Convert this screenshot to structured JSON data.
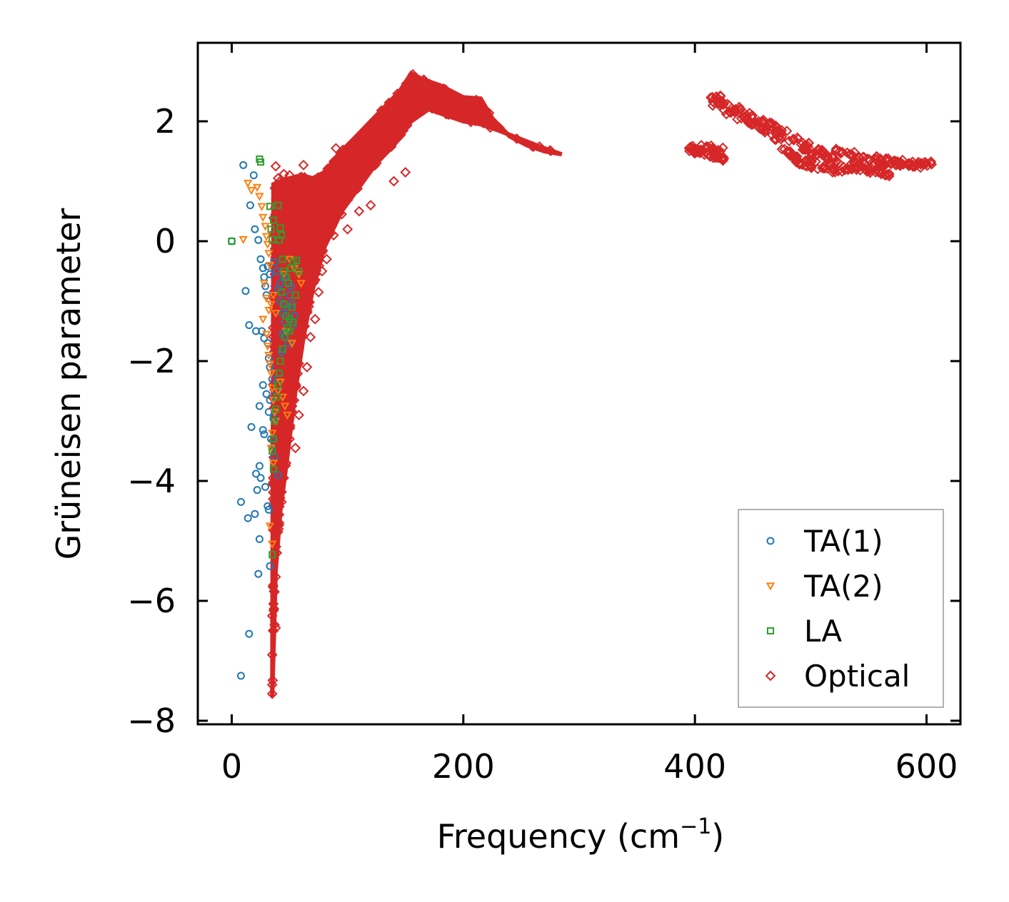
{
  "chart_data": {
    "type": "scatter",
    "title": "",
    "xlabel": "Frequency (cm",
    "xlabel_sup": "−1",
    "xlabel_close": ")",
    "ylabel": "Grüneisen parameter",
    "xlim": [
      -30,
      630
    ],
    "ylim": [
      -8.1,
      3.3
    ],
    "xticks": [
      0,
      200,
      400,
      600
    ],
    "yticks": [
      2,
      0,
      -2,
      -4,
      -6,
      -8
    ],
    "xtick_labels": [
      "0",
      "200",
      "400",
      "600"
    ],
    "ytick_labels": [
      "2",
      "0",
      "−2",
      "−4",
      "−6",
      "−8"
    ],
    "legend_position": "lower-right",
    "series": [
      {
        "name": "TA(1)",
        "marker": "circle",
        "color": "#1f77b4",
        "points": [
          [
            0,
            0
          ],
          [
            10,
            1.27
          ],
          [
            19,
            1.1
          ],
          [
            16,
            0.6
          ],
          [
            20,
            0.2
          ],
          [
            23,
            0.02
          ],
          [
            25,
            -0.3
          ],
          [
            27,
            -0.45
          ],
          [
            28,
            -0.6
          ],
          [
            29,
            -0.75
          ],
          [
            30,
            -0.9
          ],
          [
            31,
            -0.42
          ],
          [
            33,
            -0.55
          ],
          [
            12,
            -0.83
          ],
          [
            15,
            -1.4
          ],
          [
            21,
            -1.5
          ],
          [
            26,
            -1.5
          ],
          [
            28,
            -1.62
          ],
          [
            31,
            -1.7
          ],
          [
            32,
            -1.95
          ],
          [
            33,
            -2.1
          ],
          [
            35,
            -2.3
          ],
          [
            27,
            -2.4
          ],
          [
            30,
            -2.55
          ],
          [
            33,
            -2.65
          ],
          [
            24,
            -2.75
          ],
          [
            32,
            -2.85
          ],
          [
            17,
            -3.1
          ],
          [
            27,
            -3.15
          ],
          [
            28,
            -3.22
          ],
          [
            35,
            -3.45
          ],
          [
            37,
            -3.6
          ],
          [
            40,
            -3.9
          ],
          [
            24,
            -3.75
          ],
          [
            21,
            -3.88
          ],
          [
            25,
            -3.95
          ],
          [
            22,
            -4.15
          ],
          [
            29,
            -4.1
          ],
          [
            31,
            -4.42
          ],
          [
            32,
            -4.48
          ],
          [
            20,
            -4.55
          ],
          [
            14,
            -4.62
          ],
          [
            8,
            -4.35
          ],
          [
            24,
            -4.97
          ],
          [
            33,
            -5.42
          ],
          [
            23,
            -5.55
          ],
          [
            15,
            -6.55
          ],
          [
            8,
            -7.25
          ],
          [
            40,
            -0.8
          ],
          [
            42,
            -1.0
          ],
          [
            44,
            -1.2
          ],
          [
            46,
            -1.35
          ],
          [
            48,
            -1.1
          ],
          [
            50,
            -0.9
          ],
          [
            52,
            -1.05
          ],
          [
            54,
            -1.25
          ],
          [
            45,
            -0.6
          ],
          [
            47,
            -1.5
          ],
          [
            49,
            -1.7
          ],
          [
            43,
            -1.85
          ],
          [
            41,
            -2.2
          ],
          [
            38,
            -2.5
          ],
          [
            36,
            -2.95
          ],
          [
            34,
            -3.3
          ],
          [
            39,
            -0.5
          ],
          [
            37,
            -0.35
          ],
          [
            42,
            -0.7
          ],
          [
            51,
            -0.75
          ],
          [
            53,
            -1.4
          ],
          [
            44,
            -1.55
          ]
        ]
      },
      {
        "name": "TA(2)",
        "marker": "triangle-down",
        "color": "#ff7f0e",
        "points": [
          [
            10,
            0.03
          ],
          [
            14,
            0.97
          ],
          [
            17,
            0.85
          ],
          [
            22,
            0.9
          ],
          [
            24,
            0.75
          ],
          [
            26,
            0.58
          ],
          [
            27,
            0.4
          ],
          [
            29,
            0.25
          ],
          [
            30,
            0.08
          ],
          [
            31,
            -0.05
          ],
          [
            32,
            -0.2
          ],
          [
            33,
            -0.4
          ],
          [
            28,
            -0.7
          ],
          [
            30,
            -0.95
          ],
          [
            32,
            -1.15
          ],
          [
            34,
            -1.05
          ],
          [
            36,
            -0.9
          ],
          [
            38,
            -1.2
          ],
          [
            27,
            -1.3
          ],
          [
            30,
            -1.55
          ],
          [
            31,
            -1.75
          ],
          [
            32,
            -1.9
          ],
          [
            33,
            -2.05
          ],
          [
            34,
            -2.2
          ],
          [
            35,
            -2.45
          ],
          [
            36,
            -2.65
          ],
          [
            37,
            -2.85
          ],
          [
            38,
            -3.0
          ],
          [
            35,
            -3.2
          ],
          [
            34,
            -3.45
          ],
          [
            36,
            -3.7
          ],
          [
            33,
            -4.75
          ],
          [
            35,
            -5.05
          ],
          [
            40,
            -2.5
          ],
          [
            42,
            -2.35
          ],
          [
            44,
            -2.6
          ],
          [
            46,
            -2.75
          ],
          [
            48,
            -2.9
          ],
          [
            50,
            -0.3
          ],
          [
            54,
            -0.45
          ],
          [
            58,
            -0.55
          ],
          [
            60,
            -0.7
          ],
          [
            45,
            -0.55
          ],
          [
            47,
            -1.5
          ],
          [
            52,
            -1.7
          ]
        ]
      },
      {
        "name": "LA",
        "marker": "square",
        "color": "#2ca02c",
        "points": [
          [
            0,
            0
          ],
          [
            24,
            1.37
          ],
          [
            25,
            1.32
          ],
          [
            33,
            0.58
          ],
          [
            36,
            0.35
          ],
          [
            34,
            0.2
          ],
          [
            35,
            0.03
          ],
          [
            40,
            0.6
          ],
          [
            42,
            0.22
          ],
          [
            43,
            0.1
          ],
          [
            41,
            0.02
          ],
          [
            44,
            -0.3
          ],
          [
            45,
            -0.5
          ],
          [
            47,
            -0.6
          ],
          [
            49,
            -0.7
          ],
          [
            51,
            -0.45
          ],
          [
            53,
            -0.35
          ],
          [
            56,
            -0.32
          ],
          [
            58,
            -0.5
          ],
          [
            55,
            -0.9
          ],
          [
            52,
            -1.1
          ],
          [
            50,
            -1.3
          ],
          [
            48,
            -1.45
          ],
          [
            46,
            -1.6
          ],
          [
            44,
            -1.8
          ],
          [
            42,
            -2.0
          ],
          [
            41,
            -2.2
          ],
          [
            40,
            -2.4
          ],
          [
            39,
            -2.6
          ],
          [
            38,
            -2.8
          ],
          [
            37,
            -3.0
          ],
          [
            36,
            -3.3
          ],
          [
            35,
            -3.5
          ],
          [
            36,
            -3.8
          ],
          [
            35,
            -5.23
          ],
          [
            43,
            -0.85
          ],
          [
            45,
            -1.05
          ],
          [
            47,
            -1.25
          ],
          [
            50,
            -1.5
          ],
          [
            53,
            -1.35
          ]
        ]
      },
      {
        "name": "Optical",
        "marker": "diamond",
        "color": "#d62728",
        "band": [
          [
            35,
            -7.6
          ],
          [
            38,
            -5.5
          ],
          [
            42,
            -4.5
          ],
          [
            48,
            -3.6
          ],
          [
            55,
            -2.5
          ],
          [
            62,
            -1.6
          ],
          [
            70,
            -0.8
          ],
          [
            80,
            -0.1
          ],
          [
            95,
            0.5
          ],
          [
            110,
            0.9
          ],
          [
            125,
            1.3
          ],
          [
            140,
            1.6
          ],
          [
            155,
            2.0
          ],
          [
            170,
            2.2
          ],
          [
            185,
            2.1
          ],
          [
            200,
            2.0
          ],
          [
            215,
            1.95
          ],
          [
            230,
            1.85
          ],
          [
            250,
            1.7
          ],
          [
            270,
            1.55
          ],
          [
            285,
            1.45
          ],
          [
            270,
            1.5
          ],
          [
            255,
            1.6
          ],
          [
            240,
            1.75
          ],
          [
            225,
            2.05
          ],
          [
            215,
            2.38
          ],
          [
            200,
            2.4
          ],
          [
            190,
            2.5
          ],
          [
            180,
            2.6
          ],
          [
            165,
            2.7
          ],
          [
            155,
            2.8
          ],
          [
            145,
            2.5
          ],
          [
            135,
            2.3
          ],
          [
            120,
            2.0
          ],
          [
            105,
            1.7
          ],
          [
            92,
            1.45
          ],
          [
            80,
            1.15
          ],
          [
            70,
            1.05
          ],
          [
            60,
            1.1
          ],
          [
            50,
            1.05
          ],
          [
            42,
            1.0
          ],
          [
            36,
            0.95
          ]
        ],
        "clusters": [
          [
            [
              395,
              1.55
            ],
            [
              405,
              1.5
            ],
            [
              412,
              1.45
            ],
            [
              418,
              1.4
            ],
            [
              425,
              1.38
            ],
            [
              420,
              1.52
            ],
            [
              410,
              1.58
            ],
            [
              400,
              1.5
            ]
          ],
          [
            [
              418,
              2.4
            ],
            [
              425,
              2.3
            ],
            [
              435,
              2.2
            ],
            [
              445,
              2.1
            ],
            [
              455,
              2.0
            ],
            [
              465,
              1.95
            ],
            [
              475,
              1.85
            ],
            [
              485,
              1.7
            ],
            [
              495,
              1.55
            ],
            [
              505,
              1.45
            ],
            [
              515,
              1.4
            ],
            [
              525,
              1.5
            ],
            [
              535,
              1.45
            ],
            [
              545,
              1.4
            ],
            [
              555,
              1.38
            ],
            [
              565,
              1.35
            ],
            [
              575,
              1.33
            ],
            [
              585,
              1.3
            ],
            [
              595,
              1.28
            ],
            [
              600,
              1.3
            ],
            [
              590,
              1.25
            ],
            [
              580,
              1.28
            ],
            [
              570,
              1.3
            ],
            [
              560,
              1.25
            ],
            [
              550,
              1.2
            ],
            [
              540,
              1.22
            ],
            [
              530,
              1.2
            ],
            [
              520,
              1.18
            ],
            [
              510,
              1.22
            ],
            [
              500,
              1.25
            ],
            [
              490,
              1.3
            ],
            [
              485,
              1.4
            ],
            [
              480,
              1.5
            ],
            [
              470,
              1.7
            ],
            [
              460,
              1.85
            ],
            [
              450,
              1.95
            ],
            [
              440,
              2.05
            ],
            [
              430,
              2.15
            ],
            [
              420,
              2.3
            ],
            [
              470,
              1.8
            ],
            [
              500,
              1.35
            ],
            [
              520,
              1.3
            ],
            [
              540,
              1.3
            ],
            [
              556,
              1.15
            ],
            [
              565,
              1.1
            ],
            [
              510,
              1.5
            ],
            [
              495,
              1.6
            ]
          ]
        ],
        "outliers": [
          [
            35,
            -7.4
          ],
          [
            35,
            -7.55
          ],
          [
            35,
            -6.9
          ],
          [
            36,
            -6.5
          ],
          [
            37,
            -6.4
          ],
          [
            38,
            -6.45
          ],
          [
            35,
            -6.25
          ],
          [
            36,
            -6.05
          ],
          [
            37,
            -5.85
          ],
          [
            38,
            -5.6
          ],
          [
            39,
            -5.2
          ],
          [
            40,
            -4.85
          ],
          [
            41,
            -4.7
          ],
          [
            43,
            -4.35
          ],
          [
            38,
            -4.25
          ],
          [
            45,
            -3.95
          ],
          [
            47,
            -3.7
          ],
          [
            50,
            -3.3
          ],
          [
            55,
            -3.45
          ],
          [
            58,
            -2.9
          ],
          [
            62,
            -2.5
          ],
          [
            65,
            -2.1
          ],
          [
            68,
            -1.6
          ],
          [
            72,
            -1.3
          ],
          [
            75,
            -0.85
          ],
          [
            78,
            -0.5
          ],
          [
            82,
            -0.3
          ],
          [
            88,
            0.1
          ],
          [
            95,
            0.45
          ],
          [
            100,
            0.2
          ],
          [
            110,
            0.5
          ],
          [
            120,
            0.6
          ],
          [
            140,
            1.0
          ],
          [
            150,
            1.15
          ],
          [
            125,
            2.05
          ],
          [
            105,
            1.6
          ],
          [
            90,
            1.55
          ],
          [
            62,
            1.27
          ],
          [
            45,
            1.12
          ],
          [
            50,
            1.1
          ],
          [
            38,
            1.25
          ],
          [
            40,
            1.05
          ],
          [
            42,
            0.9
          ]
        ]
      }
    ]
  }
}
